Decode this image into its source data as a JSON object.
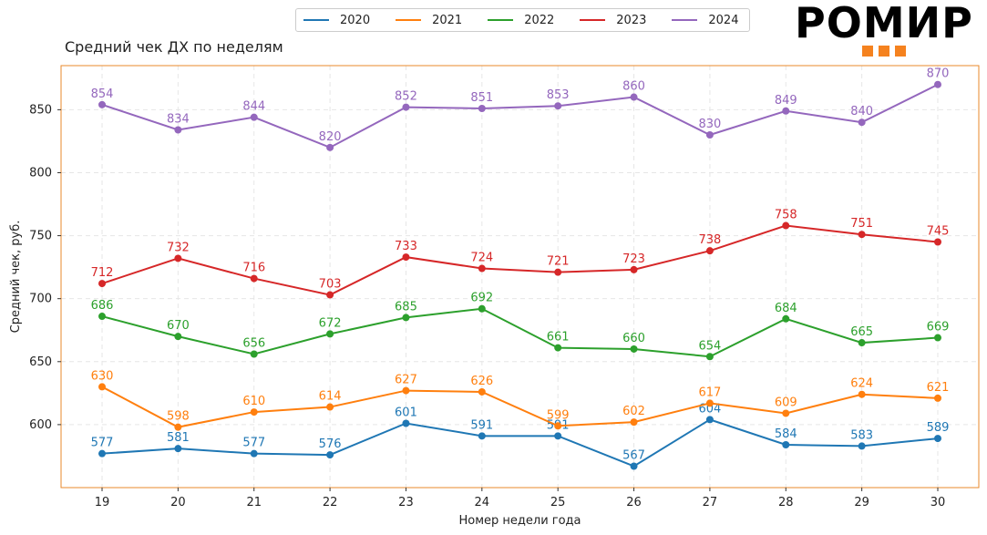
{
  "title": "Средний чек ДХ по неделям",
  "logo": {
    "text": "РОМИР",
    "accent": "#f5821f"
  },
  "chart_data": {
    "type": "line",
    "title": "Средний чек ДХ по неделям",
    "xlabel": "Номер недели года",
    "ylabel": "Средний чек, руб.",
    "x": [
      19,
      20,
      21,
      22,
      23,
      24,
      25,
      26,
      27,
      28,
      29,
      30
    ],
    "ylim": [
      550,
      885
    ],
    "yticks": [
      600,
      650,
      700,
      750,
      800,
      850
    ],
    "grid": true,
    "legend": "top-center",
    "frame_color": "#e8892b",
    "series": [
      {
        "name": "2020",
        "color": "#1f77b4",
        "values": [
          577,
          581,
          577,
          576,
          601,
          591,
          591,
          567,
          604,
          584,
          583,
          589
        ]
      },
      {
        "name": "2021",
        "color": "#ff7f0e",
        "values": [
          630,
          598,
          610,
          614,
          627,
          626,
          599,
          602,
          617,
          609,
          624,
          621
        ]
      },
      {
        "name": "2022",
        "color": "#2ca02c",
        "values": [
          686,
          670,
          656,
          672,
          685,
          692,
          661,
          660,
          654,
          684,
          665,
          669
        ]
      },
      {
        "name": "2023",
        "color": "#d62728",
        "values": [
          712,
          732,
          716,
          703,
          733,
          724,
          721,
          723,
          738,
          758,
          751,
          745
        ]
      },
      {
        "name": "2024",
        "color": "#9467bd",
        "values": [
          854,
          834,
          844,
          820,
          852,
          851,
          853,
          860,
          830,
          849,
          840,
          870
        ]
      }
    ]
  }
}
